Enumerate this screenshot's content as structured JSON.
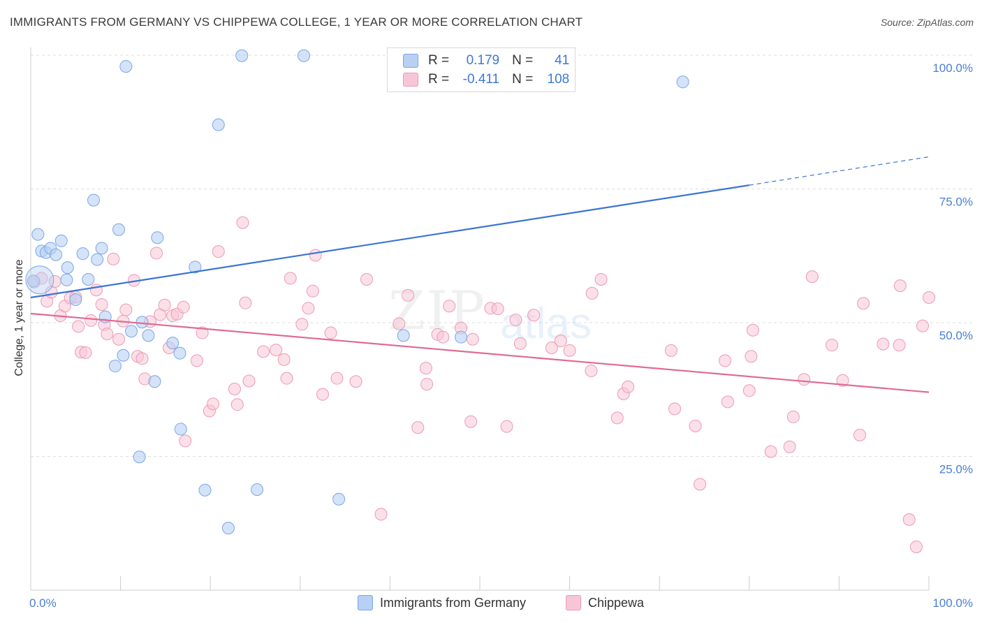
{
  "title": "IMMIGRANTS FROM GERMANY VS CHIPPEWA COLLEGE, 1 YEAR OR MORE CORRELATION CHART",
  "source": "Source: ZipAtlas.com",
  "watermark": {
    "part1": "ZIP",
    "part2": "atlas"
  },
  "legend": {
    "rows": [
      {
        "r_label": "R =",
        "r_value": "0.179",
        "n_label": "N =",
        "n_value": "41"
      },
      {
        "r_label": "R =",
        "r_value": "-0.411",
        "n_label": "N =",
        "n_value": "108"
      }
    ]
  },
  "bottom_legend": [
    "Immigrants from Germany",
    "Chippewa"
  ],
  "colors": {
    "blue": "#3a74d4",
    "blue_fill": "#b7d0f3",
    "blue_stroke": "#7aa6e6",
    "pink": "#e06a93",
    "pink_fill": "#f7c6d6",
    "pink_stroke": "#ec9ab5",
    "grid": "#dddddd",
    "tick_label": "#4a7fd4"
  },
  "chart_data": {
    "type": "scatter",
    "title": "IMMIGRANTS FROM GERMANY VS CHIPPEWA COLLEGE, 1 YEAR OR MORE CORRELATION CHART",
    "xlabel": "",
    "ylabel": "College, 1 year or more",
    "xlim": [
      0,
      100
    ],
    "ylim": [
      0,
      100
    ],
    "x_tick_labels": [
      "0.0%",
      "100.0%"
    ],
    "y_tick_values": [
      25,
      50,
      75,
      100
    ],
    "y_tick_labels": [
      "25.0%",
      "50.0%",
      "75.0%",
      "100.0%"
    ],
    "series": [
      {
        "name": "Immigrants from Germany",
        "R": 0.179,
        "N": 41,
        "trend": {
          "x0": 0,
          "y0": 54.7,
          "x1": 80,
          "y1": 75.7,
          "dash_to_x": 100,
          "dash_to_y": 81
        },
        "points": [
          [
            0.3,
            57.8
          ],
          [
            0.8,
            66.5
          ],
          [
            1.2,
            63.4
          ],
          [
            1.7,
            63.1
          ],
          [
            2.2,
            63.9
          ],
          [
            2.8,
            62.7
          ],
          [
            3.4,
            65.3
          ],
          [
            4.1,
            60.3
          ],
          [
            4.0,
            58.0
          ],
          [
            5.0,
            54.3
          ],
          [
            5.8,
            62.9
          ],
          [
            6.4,
            58.1
          ],
          [
            7.0,
            72.9
          ],
          [
            7.4,
            61.8
          ],
          [
            7.9,
            63.9
          ],
          [
            8.3,
            51.1
          ],
          [
            9.4,
            41.9
          ],
          [
            9.8,
            67.4
          ],
          [
            10.3,
            43.9
          ],
          [
            10.6,
            97.9
          ],
          [
            11.2,
            48.4
          ],
          [
            12.1,
            24.9
          ],
          [
            12.4,
            50.1
          ],
          [
            13.1,
            47.6
          ],
          [
            13.8,
            39.0
          ],
          [
            14.1,
            65.9
          ],
          [
            15.8,
            46.2
          ],
          [
            16.6,
            44.3
          ],
          [
            16.7,
            30.1
          ],
          [
            18.3,
            60.4
          ],
          [
            19.4,
            18.7
          ],
          [
            20.9,
            87.0
          ],
          [
            22.0,
            11.6
          ],
          [
            23.5,
            99.9
          ],
          [
            25.2,
            18.8
          ],
          [
            30.4,
            99.9
          ],
          [
            34.3,
            17.0
          ],
          [
            41.5,
            47.6
          ],
          [
            47.9,
            47.3
          ],
          [
            72.6,
            95.0
          ],
          [
            1.0,
            58.0
          ]
        ]
      },
      {
        "name": "Chippewa",
        "R": -0.411,
        "N": 108,
        "trend": {
          "x0": 0,
          "y0": 51.7,
          "x1": 100,
          "y1": 37.0
        },
        "points": [
          [
            0.4,
            57.6
          ],
          [
            1.2,
            58.3
          ],
          [
            1.8,
            54.0
          ],
          [
            2.3,
            55.7
          ],
          [
            2.7,
            57.7
          ],
          [
            3.3,
            51.3
          ],
          [
            3.8,
            53.1
          ],
          [
            4.4,
            54.6
          ],
          [
            5.0,
            54.8
          ],
          [
            5.3,
            49.3
          ],
          [
            5.6,
            44.5
          ],
          [
            6.1,
            44.4
          ],
          [
            6.7,
            50.4
          ],
          [
            7.3,
            56.1
          ],
          [
            7.9,
            53.4
          ],
          [
            8.2,
            49.6
          ],
          [
            8.5,
            47.9
          ],
          [
            9.2,
            61.9
          ],
          [
            9.8,
            46.9
          ],
          [
            10.3,
            50.3
          ],
          [
            10.6,
            52.4
          ],
          [
            11.5,
            57.9
          ],
          [
            11.9,
            43.7
          ],
          [
            12.4,
            43.3
          ],
          [
            12.7,
            39.5
          ],
          [
            13.3,
            50.2
          ],
          [
            14.0,
            63.0
          ],
          [
            14.4,
            51.5
          ],
          [
            14.9,
            53.3
          ],
          [
            15.4,
            45.3
          ],
          [
            15.8,
            51.3
          ],
          [
            16.3,
            51.6
          ],
          [
            17.0,
            52.9
          ],
          [
            17.2,
            27.9
          ],
          [
            18.5,
            42.9
          ],
          [
            19.1,
            48.1
          ],
          [
            19.9,
            33.5
          ],
          [
            20.3,
            34.8
          ],
          [
            20.9,
            63.3
          ],
          [
            22.7,
            37.6
          ],
          [
            23.0,
            34.7
          ],
          [
            23.6,
            68.7
          ],
          [
            23.9,
            53.7
          ],
          [
            24.3,
            39.1
          ],
          [
            25.9,
            44.6
          ],
          [
            27.3,
            44.9
          ],
          [
            28.2,
            43.1
          ],
          [
            28.5,
            39.6
          ],
          [
            28.9,
            58.3
          ],
          [
            30.2,
            49.7
          ],
          [
            30.9,
            52.7
          ],
          [
            31.4,
            55.9
          ],
          [
            31.7,
            62.6
          ],
          [
            32.5,
            36.6
          ],
          [
            33.4,
            48.1
          ],
          [
            34.1,
            39.6
          ],
          [
            36.2,
            39.0
          ],
          [
            37.4,
            58.1
          ],
          [
            39.0,
            14.2
          ],
          [
            41.0,
            49.8
          ],
          [
            42.0,
            55.1
          ],
          [
            43.1,
            30.4
          ],
          [
            44.0,
            41.5
          ],
          [
            44.1,
            38.5
          ],
          [
            45.3,
            47.8
          ],
          [
            45.9,
            47.3
          ],
          [
            46.6,
            53.1
          ],
          [
            47.9,
            49.0
          ],
          [
            49.0,
            31.5
          ],
          [
            49.2,
            46.9
          ],
          [
            51.2,
            52.7
          ],
          [
            52.0,
            52.6
          ],
          [
            53.0,
            30.6
          ],
          [
            54.0,
            50.5
          ],
          [
            54.5,
            46.1
          ],
          [
            56.0,
            51.4
          ],
          [
            58.0,
            45.3
          ],
          [
            59.0,
            46.6
          ],
          [
            60.0,
            44.8
          ],
          [
            62.5,
            55.5
          ],
          [
            63.5,
            58.1
          ],
          [
            65.3,
            32.2
          ],
          [
            66.0,
            36.7
          ],
          [
            66.5,
            38.0
          ],
          [
            71.3,
            44.8
          ],
          [
            71.7,
            33.9
          ],
          [
            74.0,
            30.7
          ],
          [
            74.5,
            19.8
          ],
          [
            77.3,
            42.9
          ],
          [
            77.6,
            35.2
          ],
          [
            80.0,
            37.3
          ],
          [
            80.2,
            43.7
          ],
          [
            80.4,
            48.6
          ],
          [
            82.4,
            25.9
          ],
          [
            84.5,
            26.8
          ],
          [
            84.9,
            32.4
          ],
          [
            86.1,
            39.4
          ],
          [
            87.0,
            58.6
          ],
          [
            89.2,
            45.8
          ],
          [
            90.4,
            39.2
          ],
          [
            92.3,
            29.0
          ],
          [
            92.7,
            53.6
          ],
          [
            94.9,
            46.0
          ],
          [
            96.7,
            45.8
          ],
          [
            96.8,
            56.9
          ],
          [
            97.8,
            13.2
          ],
          [
            98.6,
            8.1
          ],
          [
            99.3,
            49.4
          ],
          [
            100.0,
            54.7
          ],
          [
            62.4,
            41.0
          ]
        ]
      }
    ]
  }
}
